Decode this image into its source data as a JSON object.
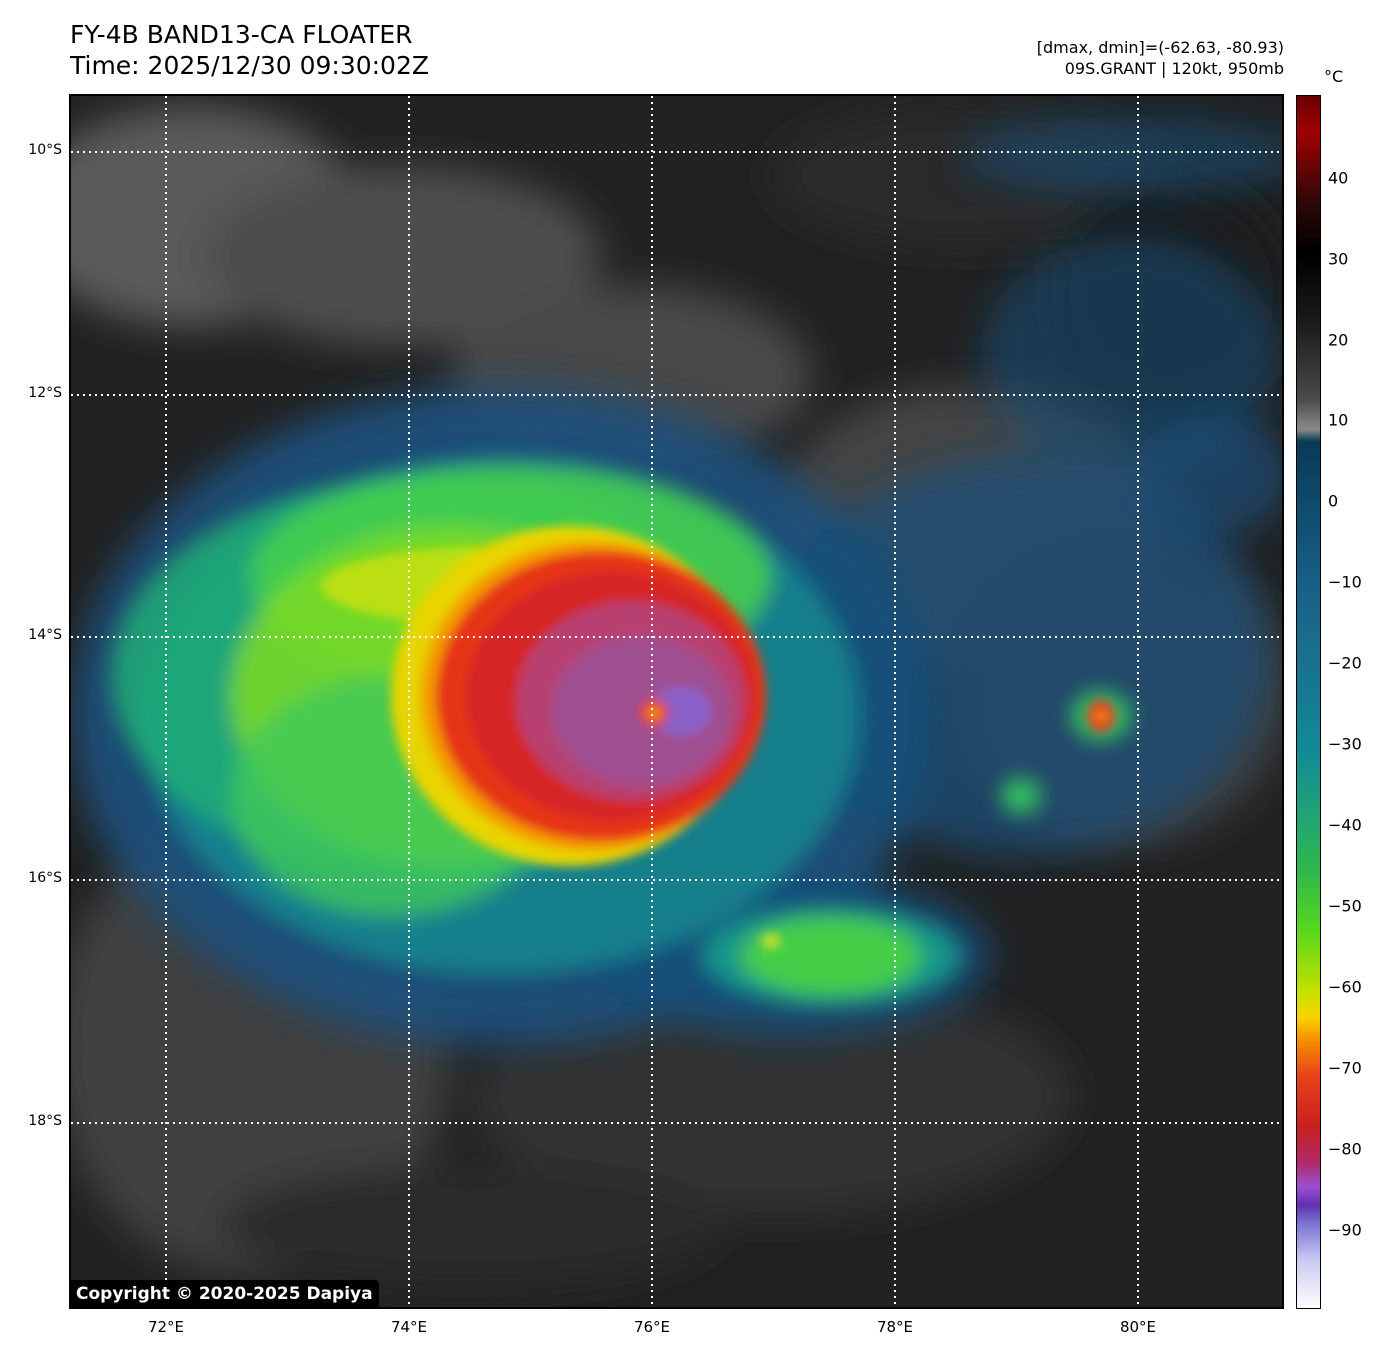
{
  "header": {
    "title_line1": "FY-4B BAND13-CA FLOATER",
    "title_line2": "Time: 2025/12/30 09:30:02Z",
    "info_line1": "[dmax, dmin]=(-62.63, -80.93)",
    "info_line2": "09S.GRANT | 120kt, 950mb"
  },
  "map": {
    "lat_labels": [
      "10°S",
      "12°S",
      "14°S",
      "16°S",
      "18°S"
    ],
    "lon_labels": [
      "72°E",
      "74°E",
      "76°E",
      "78°E",
      "80°E"
    ],
    "storm_center": {
      "lon": 76.0,
      "lat": -14.6
    },
    "copyright": "Copyright © 2020-2025 Dapiya"
  },
  "colorbar": {
    "unit": "°C",
    "tick_labels": [
      "40",
      "30",
      "20",
      "10",
      "0",
      "−10",
      "−20",
      "−30",
      "−40",
      "−50",
      "−60",
      "−70",
      "−80",
      "−90"
    ],
    "range": [
      -100,
      50
    ]
  }
}
